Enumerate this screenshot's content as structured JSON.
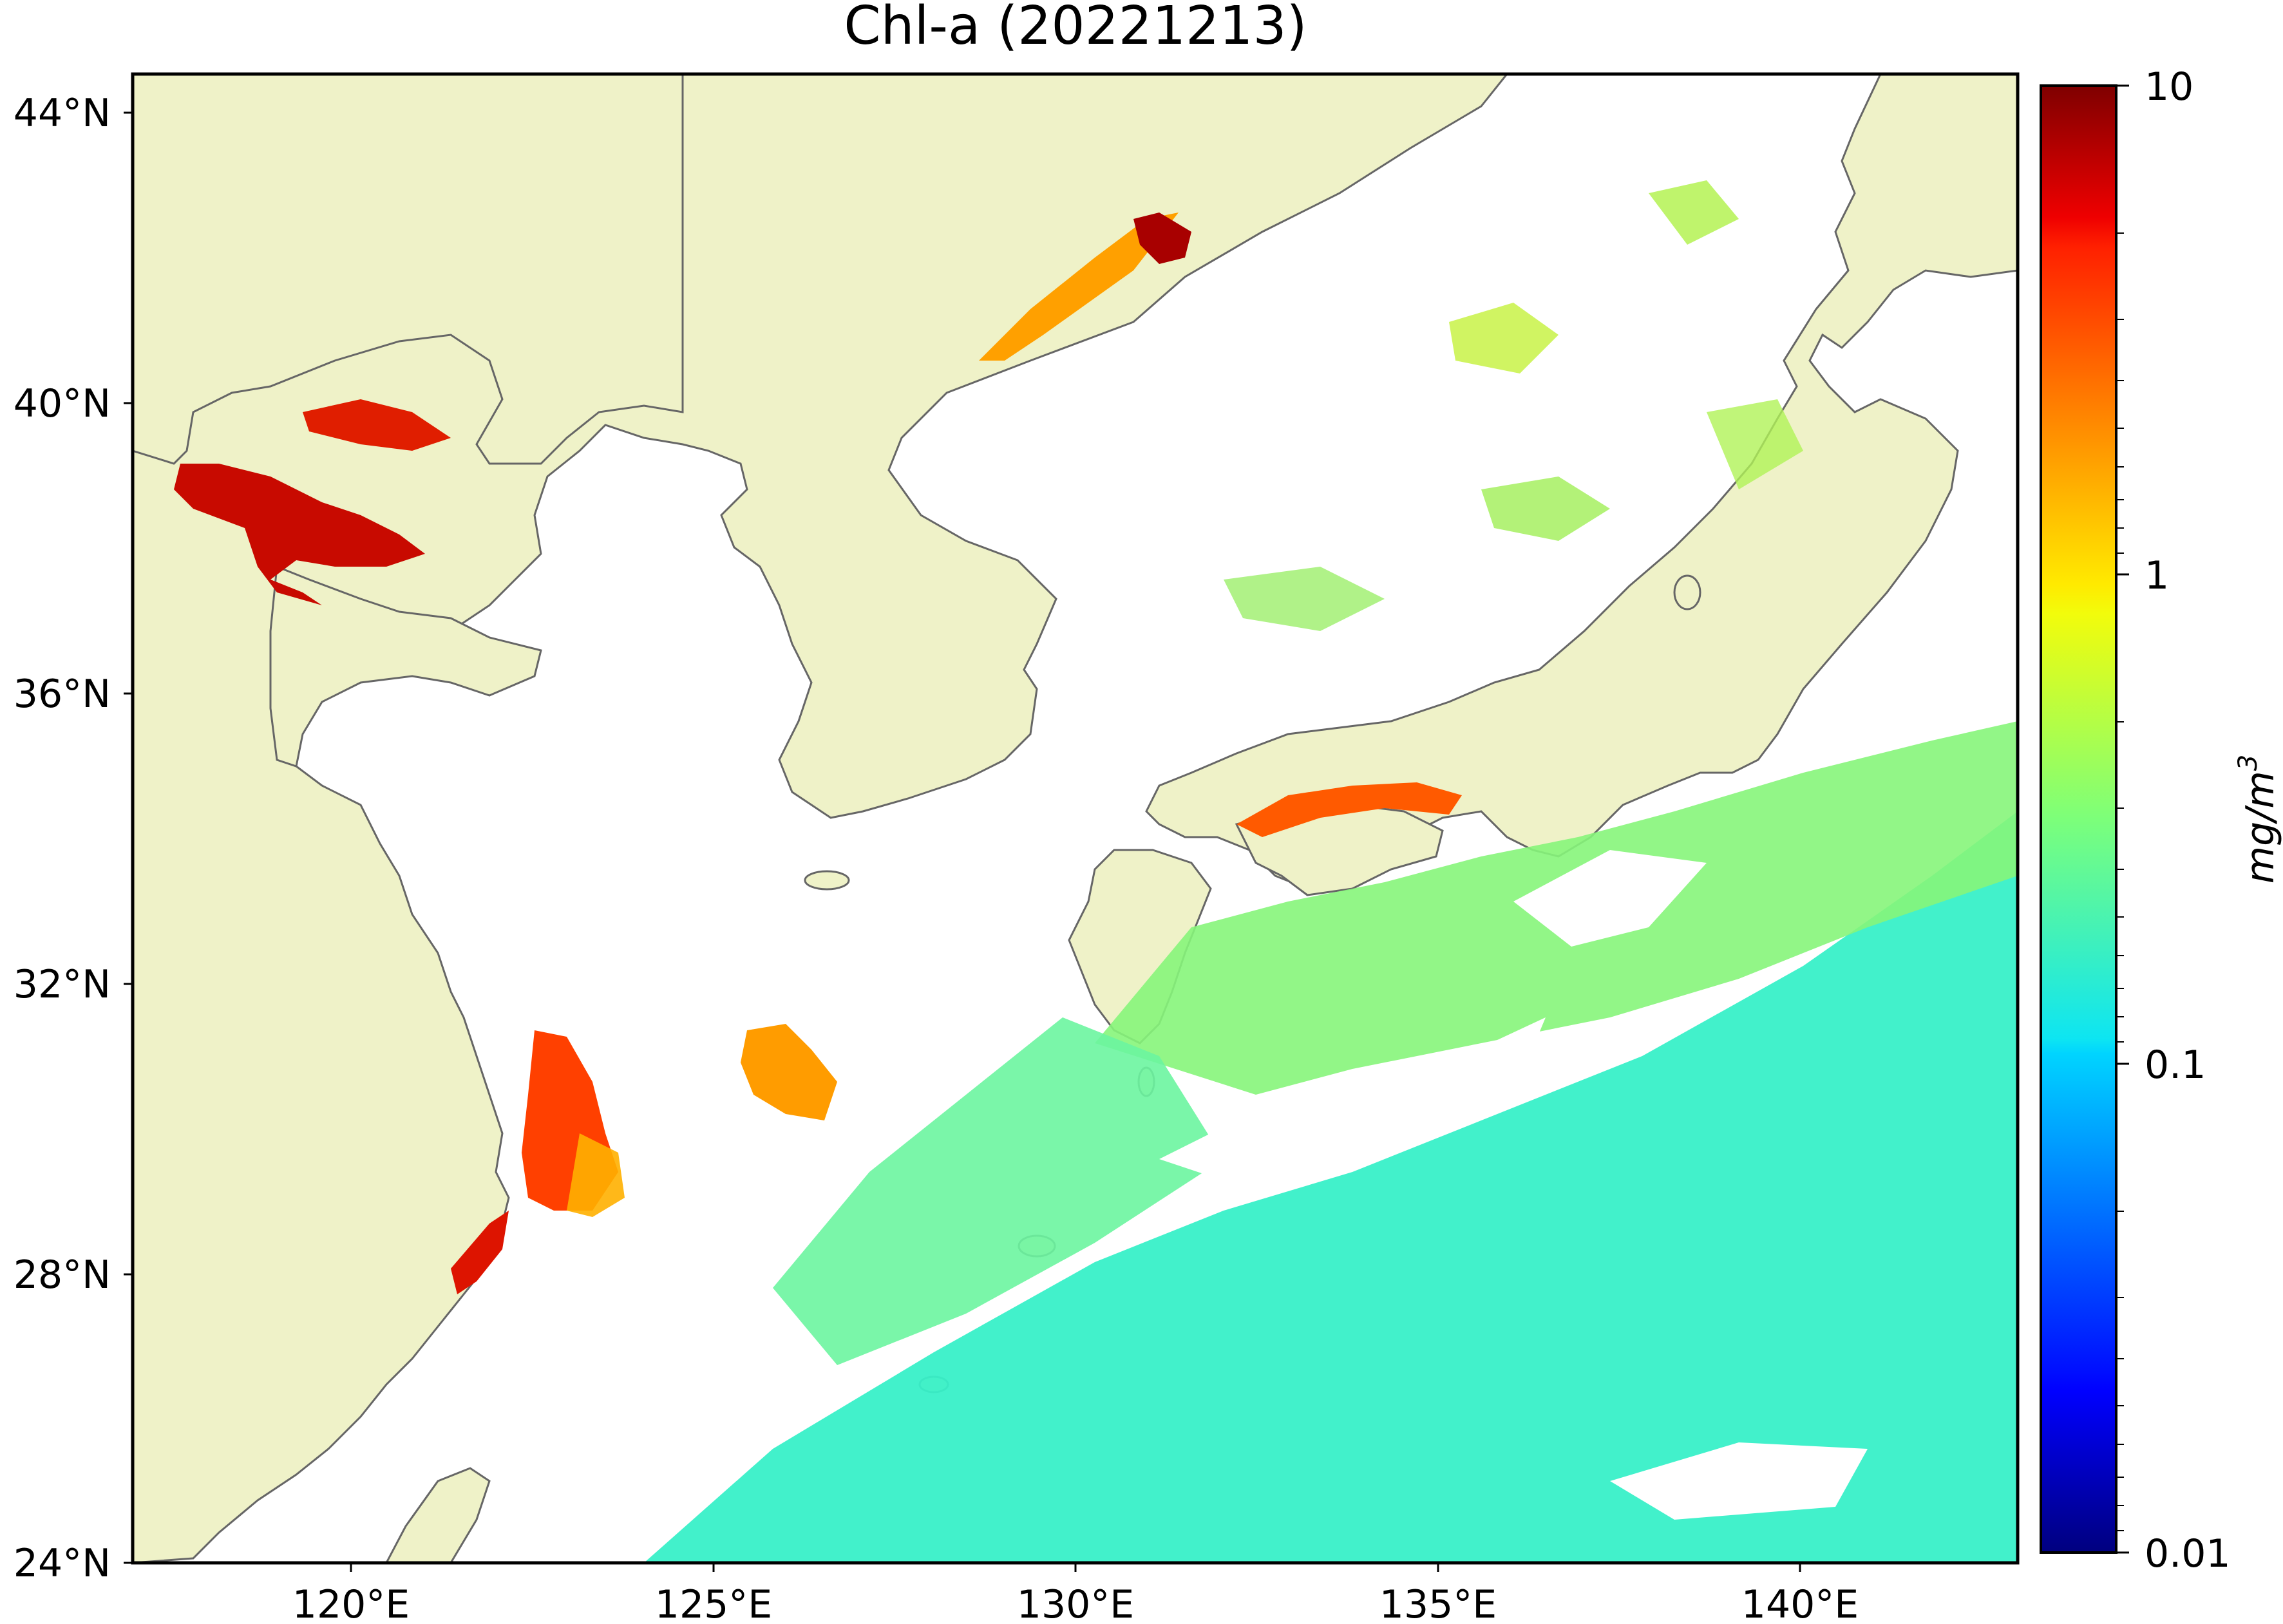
{
  "title": "Chl-a (20221213)",
  "map": {
    "lat_ticks": [
      "44°N",
      "40°N",
      "36°N",
      "32°N",
      "28°N",
      "24°N"
    ],
    "lon_ticks": [
      "120°E",
      "125°E",
      "130°E",
      "135°E",
      "140°E"
    ],
    "extent": {
      "lon_min": 117,
      "lon_max": 143,
      "lat_min": 24,
      "lat_max": 44.5
    },
    "colors": {
      "land": "#eff2c8",
      "ocean_no_data": "#ffffff",
      "coastline": "#666666"
    }
  },
  "colorbar": {
    "label": "mg/m",
    "label_sup": "3",
    "scale": "log",
    "range": [
      0.01,
      10
    ],
    "ticks": [
      "10",
      "1",
      "0.1",
      "0.01"
    ],
    "colormap": "jet"
  }
}
